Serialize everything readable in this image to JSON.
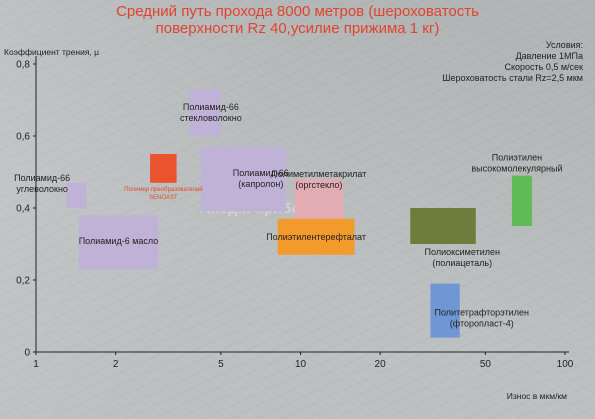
{
  "title_lines": [
    "Средний путь прохода 8000 метров (шероховатость",
    "поверхности Rz 40,усилие прижима 1 кг)"
  ],
  "conditions": {
    "title": "Условия:",
    "lines": [
      "Давление 1МПа",
      "Скорость 0,5 м/сек",
      "Шероховатость стали Rz=2,5 мкм"
    ]
  },
  "watermark": "Анод... прибор",
  "colors": {
    "purple": "#c0b2d6",
    "orange": "#f39a2c",
    "red": "#e9532d",
    "pink": "#e3acb3",
    "olive": "#6e7d3e",
    "green": "#5fbb55",
    "blue": "#6f97d4",
    "axis": "#222222"
  },
  "chart_data": {
    "type": "range-box",
    "xlabel": "Износ в мкм/км",
    "ylabel": "Коэффициент трения, μ",
    "xscale": "log",
    "xlim": [
      1,
      100
    ],
    "ylim": [
      0,
      0.8
    ],
    "xticks": [
      1,
      2,
      5,
      10,
      20,
      50,
      100
    ],
    "xtick_labels": [
      "1",
      "2",
      "5",
      "10",
      "20",
      "50",
      "100"
    ],
    "yticks": [
      0,
      0.2,
      0.4,
      0.6,
      0.8
    ],
    "ytick_labels": [
      "0",
      "0,2",
      "0,4",
      "0,6",
      "0,8"
    ],
    "series": [
      {
        "lines": [
          "Полиамид-66",
          "стекловолокно"
        ],
        "x": [
          3.8,
          5.0
        ],
        "y": [
          0.6,
          0.73
        ],
        "color": "purple"
      },
      {
        "lines": [
          "Полиамид-66",
          "(капролон)"
        ],
        "x": [
          4.2,
          8.8
        ],
        "y": [
          0.39,
          0.57
        ],
        "color": "purple"
      },
      {
        "lines": [
          "Полиамид-66",
          "углеволокно"
        ],
        "x": [
          1.3,
          1.55
        ],
        "y": [
          0.4,
          0.47
        ],
        "color": "purple"
      },
      {
        "lines": [
          "Полиамид-6 масло"
        ],
        "x": [
          1.45,
          2.9
        ],
        "y": [
          0.23,
          0.38
        ],
        "color": "purple"
      },
      {
        "lines": [
          "Полимер преобразователей",
          "SENOAST"
        ],
        "x": [
          2.7,
          3.4
        ],
        "y": [
          0.47,
          0.55
        ],
        "color": "red"
      },
      {
        "lines": [
          "Полиметилметакрилат",
          "(оргстекло)"
        ],
        "x": [
          9.5,
          14.5
        ],
        "y": [
          0.37,
          0.48
        ],
        "color": "pink"
      },
      {
        "lines": [
          "Полиэтилентерефталат"
        ],
        "x": [
          8.2,
          16.0
        ],
        "y": [
          0.27,
          0.37
        ],
        "color": "orange"
      },
      {
        "lines": [
          "Полиоксиметилен",
          "(полиацеталь)"
        ],
        "x": [
          26.0,
          46.0
        ],
        "y": [
          0.3,
          0.4
        ],
        "color": "olive"
      },
      {
        "lines": [
          "Полиэтилен",
          "высокомолекулярный"
        ],
        "x": [
          63.0,
          75.0
        ],
        "y": [
          0.35,
          0.49
        ],
        "color": "green"
      },
      {
        "lines": [
          "Политетрафторэтилен",
          "(фторопласт-4)"
        ],
        "x": [
          31.0,
          40.0
        ],
        "y": [
          0.04,
          0.19
        ],
        "color": "blue"
      }
    ]
  }
}
